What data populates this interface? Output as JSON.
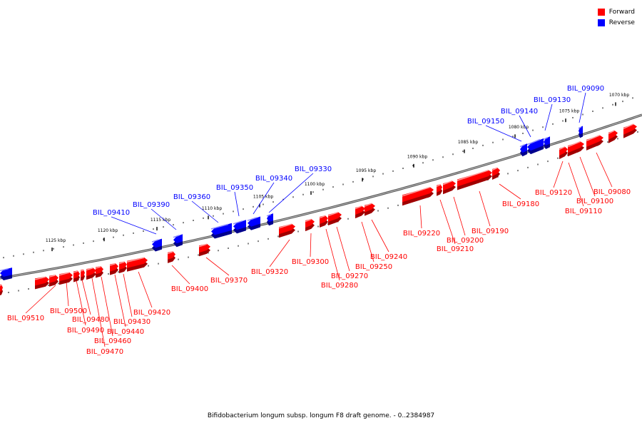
{
  "legend": [
    {
      "label": "Forward",
      "color": "#ff0000"
    },
    {
      "label": "Reverse",
      "color": "#0000ff"
    }
  ],
  "caption": "Bifidobacterium longum subsp. longum F8 draft genome. - 0..2384987",
  "colors": {
    "forward": "#ff0000",
    "reverse": "#0000ff",
    "backbone": "#808080"
  },
  "scale_ticks": [
    "1070 kbp",
    "1075 kbp",
    "1080 kbp",
    "1085 kbp",
    "1090 kbp",
    "1095 kbp",
    "1100 kbp",
    "1105 kbp",
    "1110 kbp",
    "1115 kbp",
    "1120 kbp",
    "1125 kbp"
  ],
  "genes": [
    {
      "name": "BIL_09080",
      "strand": "forward"
    },
    {
      "name": "BIL_09090",
      "strand": "reverse"
    },
    {
      "name": "BIL_09100",
      "strand": "forward"
    },
    {
      "name": "BIL_09110",
      "strand": "forward"
    },
    {
      "name": "BIL_09120",
      "strand": "forward"
    },
    {
      "name": "BIL_09130",
      "strand": "reverse"
    },
    {
      "name": "BIL_09140",
      "strand": "reverse"
    },
    {
      "name": "BIL_09150",
      "strand": "reverse"
    },
    {
      "name": "BIL_09180",
      "strand": "forward"
    },
    {
      "name": "BIL_09190",
      "strand": "forward"
    },
    {
      "name": "BIL_09200",
      "strand": "forward"
    },
    {
      "name": "BIL_09210",
      "strand": "forward"
    },
    {
      "name": "BIL_09220",
      "strand": "forward"
    },
    {
      "name": "BIL_09240",
      "strand": "forward"
    },
    {
      "name": "BIL_09250",
      "strand": "forward"
    },
    {
      "name": "BIL_09270",
      "strand": "forward"
    },
    {
      "name": "BIL_09280",
      "strand": "forward"
    },
    {
      "name": "BIL_09300",
      "strand": "forward"
    },
    {
      "name": "BIL_09320",
      "strand": "forward"
    },
    {
      "name": "BIL_09330",
      "strand": "reverse"
    },
    {
      "name": "BIL_09340",
      "strand": "reverse"
    },
    {
      "name": "BIL_09350",
      "strand": "reverse"
    },
    {
      "name": "BIL_09360",
      "strand": "reverse"
    },
    {
      "name": "BIL_09370",
      "strand": "forward"
    },
    {
      "name": "BIL_09390",
      "strand": "reverse"
    },
    {
      "name": "BIL_09400",
      "strand": "forward"
    },
    {
      "name": "BIL_09410",
      "strand": "reverse"
    },
    {
      "name": "BIL_09420",
      "strand": "forward"
    },
    {
      "name": "BIL_09430",
      "strand": "forward"
    },
    {
      "name": "BIL_09440",
      "strand": "forward"
    },
    {
      "name": "BIL_09460",
      "strand": "forward"
    },
    {
      "name": "BIL_09470",
      "strand": "forward"
    },
    {
      "name": "BIL_09480",
      "strand": "forward"
    },
    {
      "name": "BIL_09490",
      "strand": "forward"
    },
    {
      "name": "BIL_09500",
      "strand": "forward"
    },
    {
      "name": "BIL_09510",
      "strand": "forward"
    }
  ]
}
